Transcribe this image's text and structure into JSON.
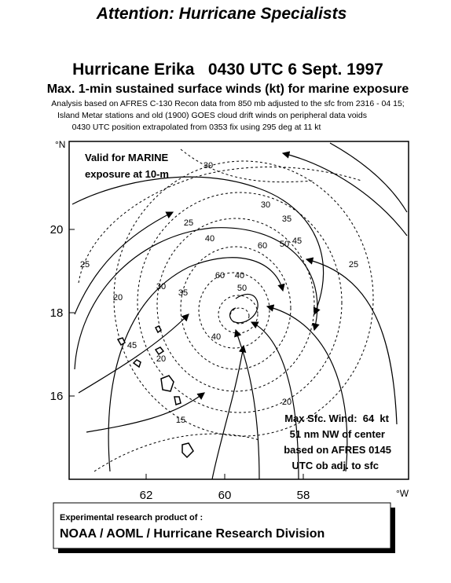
{
  "header": {
    "banner": "Attention: Hurricane Specialists",
    "title": "Hurricane Erika   0430 UTC 6 Sept. 1997",
    "subtitle": "Max. 1-min sustained surface winds (kt) for marine exposure",
    "notes": [
      "Analysis based on  AFRES C-130 Recon data from 850 mb adjusted to the sfc from 2316 - 04 15;",
      "Island Metar stations and old (1900) GOES cloud drift winds on peripheral data voids",
      "0430 UTC position extrapolated from 0353 fix using 295 deg at 11 kt"
    ]
  },
  "map": {
    "lat_unit": "°N",
    "lon_unit": "°W",
    "lat_ticks": [
      20,
      18,
      16
    ],
    "lon_ticks": [
      62,
      60,
      58
    ],
    "valid_note": [
      "Valid for MARINE",
      "exposure at 10-m"
    ],
    "max_wind_note": [
      "Max Sfc. Wind:  64  kt",
      "51 nm NW of center",
      "based on AFRES 0145",
      "UTC ob adj. to sfc"
    ],
    "contour_labels": [
      30,
      30,
      35,
      25,
      40,
      60,
      50,
      45,
      25,
      25,
      60,
      40,
      30,
      35,
      45,
      50,
      20,
      20,
      40,
      15,
      20
    ]
  },
  "footer": {
    "line1": "Experimental research product of :",
    "line2": "NOAA / AOML / Hurricane Research Division"
  }
}
